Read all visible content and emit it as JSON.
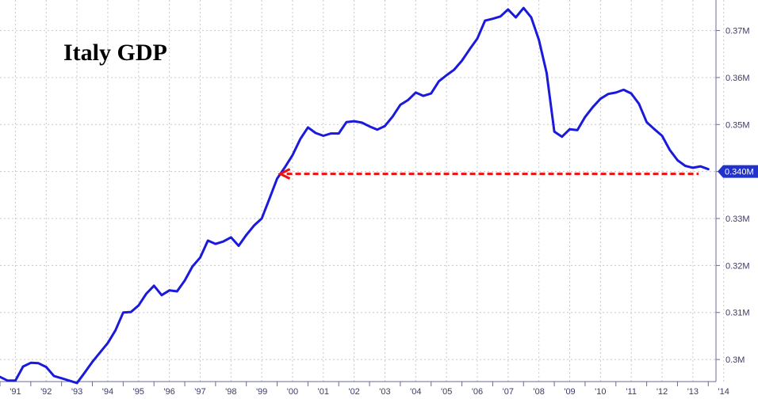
{
  "chart_data": {
    "type": "line",
    "title": "Italy GDP",
    "xlabel": "",
    "ylabel": "",
    "x_ticks": [
      "'91",
      "'92",
      "'93",
      "'94",
      "'95",
      "'96",
      "'97",
      "'98",
      "'99",
      "'00",
      "'01",
      "'02",
      "'03",
      "'04",
      "'05",
      "'06",
      "'07",
      "'08",
      "'09",
      "'10",
      "'11",
      "'12",
      "'13",
      "'14"
    ],
    "y_ticks": [
      {
        "value": 0.3,
        "label": "0.3M"
      },
      {
        "value": 0.31,
        "label": "0.31M"
      },
      {
        "value": 0.32,
        "label": "0.32M"
      },
      {
        "value": 0.33,
        "label": "0.33M"
      },
      {
        "value": 0.34,
        "label": "0.34M"
      },
      {
        "value": 0.35,
        "label": "0.35M"
      },
      {
        "value": 0.36,
        "label": "0.36M"
      },
      {
        "value": 0.37,
        "label": "0.37M"
      }
    ],
    "xlim": [
      1991.0,
      2014.25
    ],
    "ylim": [
      0.2953,
      0.3765
    ],
    "grid": true,
    "y_axis_position": "right",
    "series": [
      {
        "color": "#1a1adc",
        "x": [
          1991.0,
          1991.25,
          1991.5,
          1991.75,
          1992.0,
          1992.25,
          1992.5,
          1992.75,
          1993.0,
          1993.25,
          1993.5,
          1993.75,
          1994.0,
          1994.25,
          1994.5,
          1994.75,
          1995.0,
          1995.25,
          1995.5,
          1995.75,
          1996.0,
          1996.25,
          1996.5,
          1996.75,
          1997.0,
          1997.25,
          1997.5,
          1997.75,
          1998.0,
          1998.25,
          1998.5,
          1998.75,
          1999.0,
          1999.25,
          1999.5,
          1999.75,
          2000.0,
          2000.25,
          2000.5,
          2000.75,
          2001.0,
          2001.25,
          2001.5,
          2001.75,
          2002.0,
          2002.25,
          2002.5,
          2002.75,
          2003.0,
          2003.25,
          2003.5,
          2003.75,
          2004.0,
          2004.25,
          2004.5,
          2004.75,
          2005.0,
          2005.25,
          2005.5,
          2005.75,
          2006.0,
          2006.25,
          2006.5,
          2006.75,
          2007.0,
          2007.25,
          2007.5,
          2007.75,
          2008.0,
          2008.25,
          2008.5,
          2008.75,
          2009.0,
          2009.25,
          2009.5,
          2009.75,
          2010.0,
          2010.25,
          2010.5,
          2010.75,
          2011.0,
          2011.25,
          2011.5,
          2011.75,
          2012.0,
          2012.25,
          2012.5,
          2012.75,
          2013.0,
          2013.25,
          2013.5,
          2013.75,
          2014.0
        ],
        "y": [
          0.2963,
          0.2955,
          0.2955,
          0.2985,
          0.2993,
          0.2992,
          0.2984,
          0.2965,
          0.296,
          0.2955,
          0.295,
          0.2972,
          0.2995,
          0.3015,
          0.3035,
          0.3062,
          0.31,
          0.3101,
          0.3115,
          0.314,
          0.3157,
          0.3137,
          0.3147,
          0.3145,
          0.3168,
          0.3198,
          0.3217,
          0.3253,
          0.3246,
          0.3251,
          0.326,
          0.3242,
          0.3265,
          0.3285,
          0.33,
          0.3342,
          0.3385,
          0.3409,
          0.3435,
          0.3469,
          0.3494,
          0.3482,
          0.3476,
          0.3481,
          0.3481,
          0.3505,
          0.3507,
          0.3504,
          0.3496,
          0.3489,
          0.3497,
          0.3517,
          0.3542,
          0.3552,
          0.3568,
          0.3561,
          0.3566,
          0.3592,
          0.3605,
          0.3617,
          0.3636,
          0.366,
          0.3683,
          0.3721,
          0.3725,
          0.373,
          0.3745,
          0.3728,
          0.3748,
          0.3728,
          0.368,
          0.361,
          0.3485,
          0.3474,
          0.349,
          0.3488,
          0.3516,
          0.3537,
          0.3555,
          0.3565,
          0.3568,
          0.3574,
          0.3566,
          0.3544,
          0.3505,
          0.349,
          0.3476,
          0.3446,
          0.3424,
          0.3412,
          0.3408,
          0.3411,
          0.3405
        ]
      }
    ],
    "reference_line": {
      "from_x": 2000.0,
      "to_x": 2014.25,
      "y": 0.3395,
      "color": "#ee1111",
      "style": "dashed"
    },
    "last_value_badge": {
      "label": "0.340M",
      "value": 0.34,
      "color": "#2233cc"
    }
  }
}
